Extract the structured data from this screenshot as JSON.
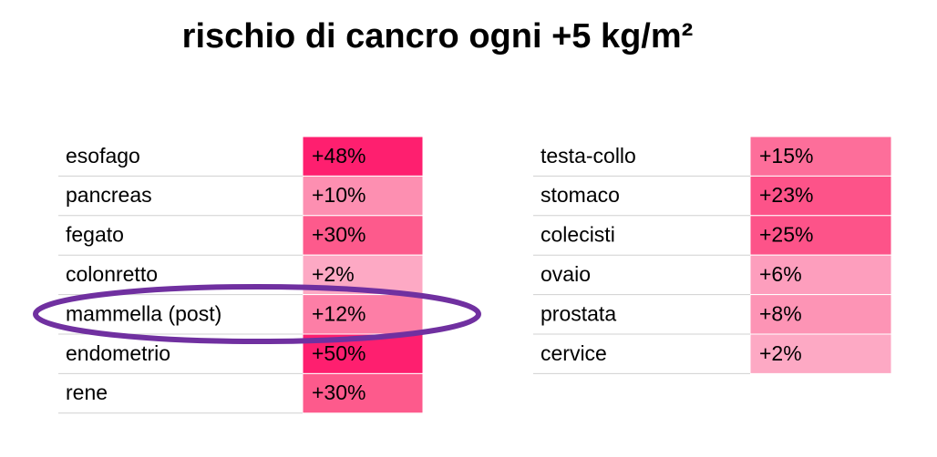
{
  "header": {
    "title": "rischio di cancro ogni +5 kg/m²"
  },
  "tables": [
    {
      "rows": [
        {
          "label": "esofago",
          "value": "+48%",
          "color": "#fe1f6f"
        },
        {
          "label": "pancreas",
          "value": "+10%",
          "color": "#fd8fb1"
        },
        {
          "label": "fegato",
          "value": "+30%",
          "color": "#fd5a8c"
        },
        {
          "label": "colonretto",
          "value": "+2%",
          "color": "#fda9c4"
        },
        {
          "label": "mammella (post)",
          "value": "+12%",
          "color": "#fd7ea6"
        },
        {
          "label": "endometrio",
          "value": "+50%",
          "color": "#fe1f6f"
        },
        {
          "label": "rene",
          "value": "+30%",
          "color": "#fd5a8c"
        }
      ]
    },
    {
      "rows": [
        {
          "label": "testa-collo",
          "value": "+15%",
          "color": "#fd6e9a"
        },
        {
          "label": "stomaco",
          "value": "+23%",
          "color": "#fd5389"
        },
        {
          "label": "colecisti",
          "value": "+25%",
          "color": "#fd5389"
        },
        {
          "label": "ovaio",
          "value": "+6%",
          "color": "#fd9ebd"
        },
        {
          "label": "prostata",
          "value": "+8%",
          "color": "#fd94b5"
        },
        {
          "label": "cervice",
          "value": "+2%",
          "color": "#fda9c4"
        }
      ]
    }
  ]
}
